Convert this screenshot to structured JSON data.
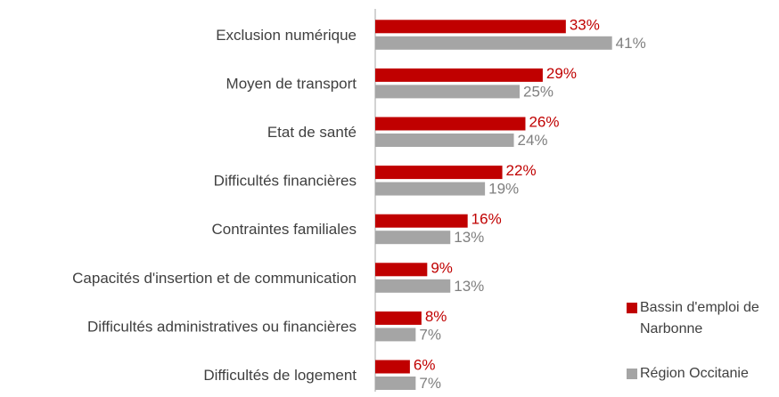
{
  "chart_data": {
    "type": "bar",
    "orientation": "horizontal",
    "categories": [
      "Exclusion numérique",
      "Moyen de transport",
      "Etat de santé",
      "Difficultés financières",
      "Contraintes familiales",
      "Capacités d'insertion et de communication",
      "Difficultés administratives ou financières",
      "Difficultés de logement"
    ],
    "series": [
      {
        "name": "Bassin d'emploi de Narbonne",
        "color": "#c00000",
        "values": [
          33,
          29,
          26,
          22,
          16,
          9,
          8,
          6
        ],
        "value_labels": [
          "33%",
          "29%",
          "26%",
          "22%",
          "16%",
          "9%",
          "8%",
          "6%"
        ]
      },
      {
        "name": "Région Occitanie",
        "color": "#a5a5a5",
        "values": [
          41,
          25,
          24,
          19,
          13,
          13,
          7,
          7
        ],
        "value_labels": [
          "41%",
          "25%",
          "24%",
          "19%",
          "13%",
          "13%",
          "7%",
          "7%"
        ]
      }
    ],
    "legend": "right"
  }
}
